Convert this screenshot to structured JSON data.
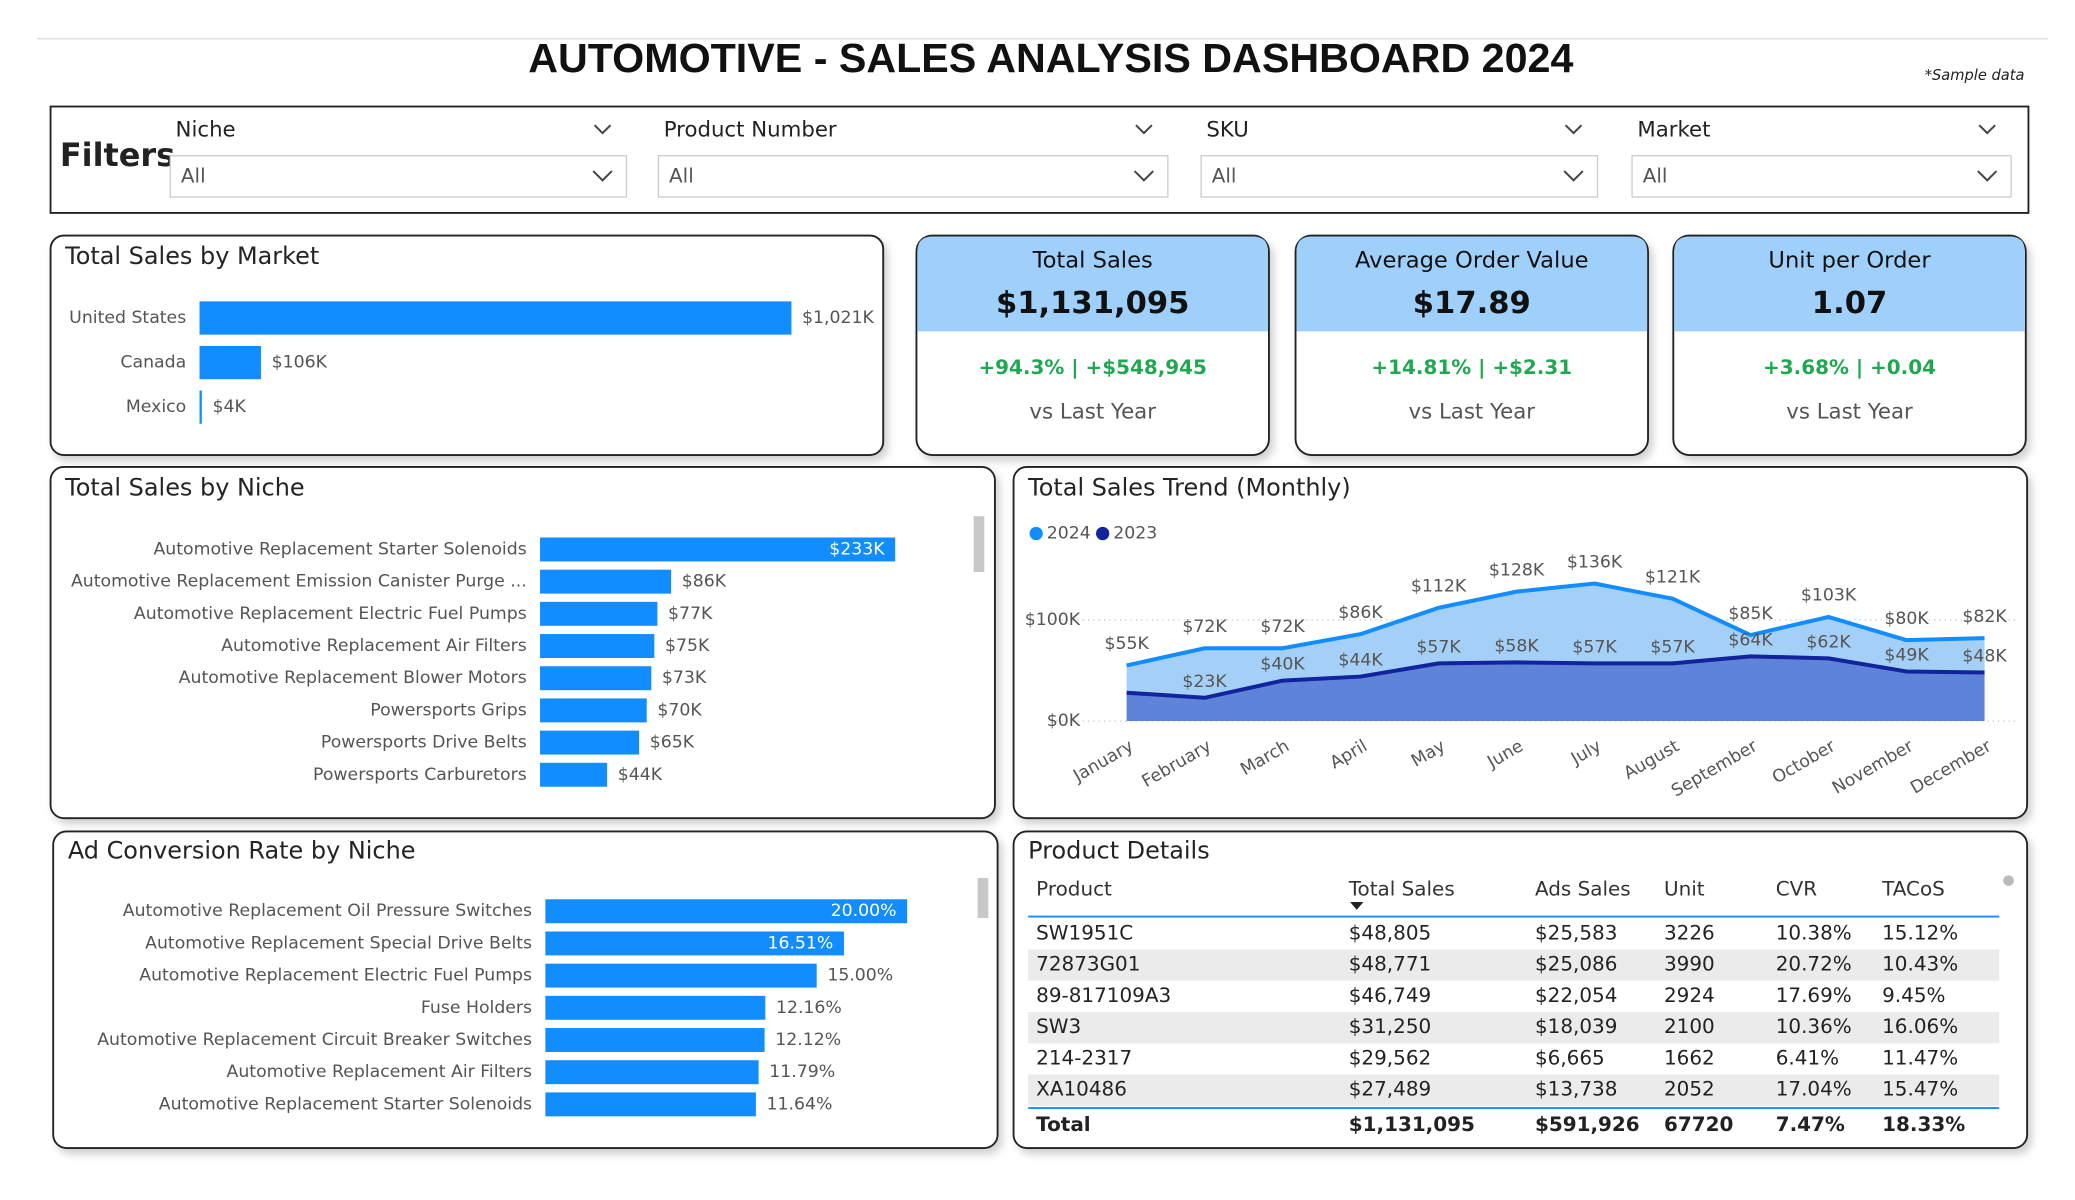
{
  "header": {
    "title": "AUTOMOTIVE - SALES ANALYSIS DASHBOARD 2024",
    "note": "*Sample data"
  },
  "filters": {
    "label": "Filters",
    "items": [
      {
        "name": "Niche",
        "value": "All"
      },
      {
        "name": "Product Number",
        "value": "All"
      },
      {
        "name": "SKU",
        "value": "All"
      },
      {
        "name": "Market",
        "value": "All"
      }
    ]
  },
  "kpis": [
    {
      "title": "Total Sales",
      "value": "$1,131,095",
      "change": "+94.3% | +$548,945",
      "comparison": "vs Last Year"
    },
    {
      "title": "Average Order Value",
      "value": "$17.89",
      "change": "+14.81% | +$2.31",
      "comparison": "vs Last Year"
    },
    {
      "title": "Unit per Order",
      "value": "1.07",
      "change": "+3.68% | +0.04",
      "comparison": "vs Last Year"
    }
  ],
  "chart_data": [
    {
      "type": "hbar",
      "title": "Total Sales by Market",
      "color": "#118dff",
      "categories": [
        "United States",
        "Canada",
        "Mexico"
      ],
      "values": [
        1021,
        106,
        4
      ],
      "value_labels": [
        "$1,021K",
        "$106K",
        "$4K"
      ]
    },
    {
      "type": "hbar",
      "title": "Total Sales by Niche",
      "color": "#118dff",
      "categories": [
        "Automotive Replacement Starter Solenoids",
        "Automotive Replacement Emission Canister Purge ...",
        "Automotive Replacement Electric Fuel Pumps",
        "Automotive Replacement Air Filters",
        "Automotive Replacement Blower Motors",
        "Powersports Grips",
        "Powersports Drive Belts",
        "Powersports Carburetors"
      ],
      "values": [
        233,
        86,
        77,
        75,
        73,
        70,
        65,
        44
      ],
      "value_labels": [
        "$233K",
        "$86K",
        "$77K",
        "$75K",
        "$73K",
        "$70K",
        "$65K",
        "$44K"
      ]
    },
    {
      "type": "area",
      "title": "Total Sales Trend (Monthly)",
      "categories": [
        "January",
        "February",
        "March",
        "April",
        "May",
        "June",
        "July",
        "August",
        "September",
        "October",
        "November",
        "December"
      ],
      "series": [
        {
          "name": "2024",
          "color": "#118dff",
          "values": [
            55,
            72,
            72,
            86,
            112,
            128,
            136,
            121,
            85,
            103,
            80,
            82
          ],
          "value_labels": [
            "$55K",
            "$72K",
            "$72K",
            "$86K",
            "$112K",
            "$128K",
            "$136K",
            "$121K",
            "$85K",
            "$103K",
            "$80K",
            "$82K"
          ]
        },
        {
          "name": "2023",
          "color": "#12239e",
          "values": [
            28,
            23,
            40,
            44,
            57,
            58,
            57,
            57,
            64,
            62,
            49,
            48
          ],
          "value_labels": [
            null,
            "$23K",
            "$40K",
            "$44K",
            "$57K",
            "$58K",
            "$57K",
            "$57K",
            "$64K",
            "$62K",
            "$49K",
            "$48K"
          ]
        }
      ],
      "ylim": [
        0,
        150
      ],
      "yticks": [
        {
          "value": 0,
          "label": "$0K"
        },
        {
          "value": 100,
          "label": "$100K"
        }
      ],
      "grid": true
    },
    {
      "type": "hbar",
      "title": "Ad Conversion Rate by Niche",
      "color": "#118dff",
      "categories": [
        "Automotive Replacement Oil Pressure Switches",
        "Automotive Replacement Special Drive Belts",
        "Automotive Replacement Electric Fuel Pumps",
        "Fuse Holders",
        "Automotive Replacement Circuit Breaker Switches",
        "Automotive Replacement Air Filters",
        "Automotive Replacement Starter Solenoids"
      ],
      "values": [
        20.0,
        16.51,
        15.0,
        12.16,
        12.12,
        11.79,
        11.64
      ],
      "value_labels": [
        "20.00%",
        "16.51%",
        "15.00%",
        "12.16%",
        "12.12%",
        "11.79%",
        "11.64%"
      ]
    }
  ],
  "table": {
    "title": "Product Details",
    "columns": [
      "Product",
      "Total Sales",
      "Ads Sales",
      "Unit",
      "CVR",
      "TACoS"
    ],
    "rows": [
      [
        "SW1951C",
        "$48,805",
        "$25,583",
        "3226",
        "10.38%",
        "15.12%"
      ],
      [
        "72873G01",
        "$48,771",
        "$25,086",
        "3990",
        "20.72%",
        "10.43%"
      ],
      [
        "89-817109A3",
        "$46,749",
        "$22,054",
        "2924",
        "17.69%",
        "9.45%"
      ],
      [
        "SW3",
        "$31,250",
        "$18,039",
        "2100",
        "10.36%",
        "16.06%"
      ],
      [
        "214-2317",
        "$29,562",
        "$6,665",
        "1662",
        "6.41%",
        "11.47%"
      ],
      [
        "XA10486",
        "$27,489",
        "$13,738",
        "2052",
        "17.04%",
        "15.47%"
      ]
    ],
    "total": [
      "Total",
      "$1,131,095",
      "$591,926",
      "67720",
      "7.47%",
      "18.33%"
    ]
  }
}
